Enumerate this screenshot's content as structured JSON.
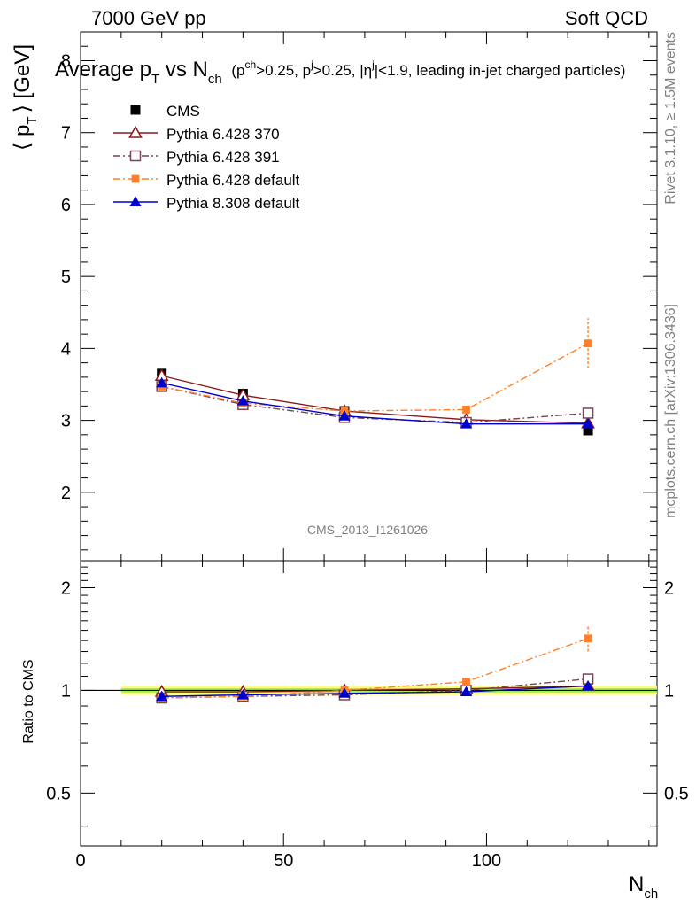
{
  "header": {
    "left": "7000 GeV pp",
    "right": "Soft QCD"
  },
  "side": {
    "rivet": "Rivet 3.1.10, ≥ 1.5M events",
    "mcplots": "mcplots.cern.ch [arXiv:1306.3436]"
  },
  "chart_data": {
    "type": "line",
    "title_main": "Average p",
    "title_sub_T": "T",
    "title_vs": " vs N",
    "title_sub_ch": "ch",
    "title_cond": "(p",
    "title_cond_sup1": "ch",
    "title_cond_mid1": ">0.25, p",
    "title_cond_sup2": "j",
    "title_cond_mid2": ">0.25, |η",
    "title_cond_sup3": "j",
    "title_cond_end": "|<1.9, leading in-jet charged particles)",
    "analysis_id": "CMS_2013_I1261026",
    "ylabel": "⟨ p",
    "ylabel_sub": "T",
    "ylabel_end": "⟩ [GeV]",
    "ratio_ylabel": "Ratio to CMS",
    "xlabel": "N",
    "xlabel_sub": "ch",
    "xlim": [
      0,
      142
    ],
    "ylim": [
      1.05,
      8.4
    ],
    "ratio_ylim": [
      0.35,
      2.4
    ],
    "x_ticks": [
      "0",
      "50",
      "100"
    ],
    "y_ticks": [
      "2",
      "3",
      "4",
      "5",
      "6",
      "7",
      "8"
    ],
    "ratio_ticks": [
      "0.5",
      "1",
      "2"
    ],
    "x": [
      20,
      40,
      65,
      95,
      125
    ],
    "series": [
      {
        "name": "CMS",
        "color": "#000000",
        "marker": "square-filled",
        "values": [
          3.65,
          3.37,
          3.13,
          2.97,
          2.86
        ],
        "ratio": [
          1.0,
          1.0,
          1.0,
          1.0,
          1.0
        ],
        "errors": [
          0.03,
          0.03,
          0.03,
          0.03,
          0.05
        ]
      },
      {
        "name": "Pythia 6.428 370",
        "color": "#8b1a1a",
        "marker": "triangle-open",
        "line": "solid",
        "values": [
          3.62,
          3.35,
          3.13,
          3.01,
          2.96
        ],
        "ratio": [
          0.99,
          0.99,
          1.0,
          1.01,
          1.03
        ]
      },
      {
        "name": "Pythia 6.428 391",
        "color": "#7a4652",
        "marker": "square-open",
        "line": "dashdot",
        "values": [
          3.47,
          3.22,
          3.04,
          2.97,
          3.1
        ],
        "ratio": [
          0.95,
          0.96,
          0.97,
          1.0,
          1.08
        ]
      },
      {
        "name": "Pythia 6.428 default",
        "color": "#ff7f2a",
        "marker": "square-filled-small",
        "line": "dashdot",
        "values": [
          3.47,
          3.24,
          3.13,
          3.15,
          4.07
        ],
        "ratio": [
          0.95,
          0.96,
          1.0,
          1.06,
          1.42
        ],
        "errors": [
          0.02,
          0.02,
          0.02,
          0.03,
          0.35
        ],
        "ratio_errors": [
          0.005,
          0.005,
          0.005,
          0.01,
          0.12
        ]
      },
      {
        "name": "Pythia 8.308 default",
        "color": "#0000cc",
        "marker": "triangle-filled",
        "line": "solid",
        "values": [
          3.52,
          3.27,
          3.06,
          2.95,
          2.95
        ],
        "ratio": [
          0.96,
          0.97,
          0.98,
          0.99,
          1.03
        ]
      }
    ]
  }
}
